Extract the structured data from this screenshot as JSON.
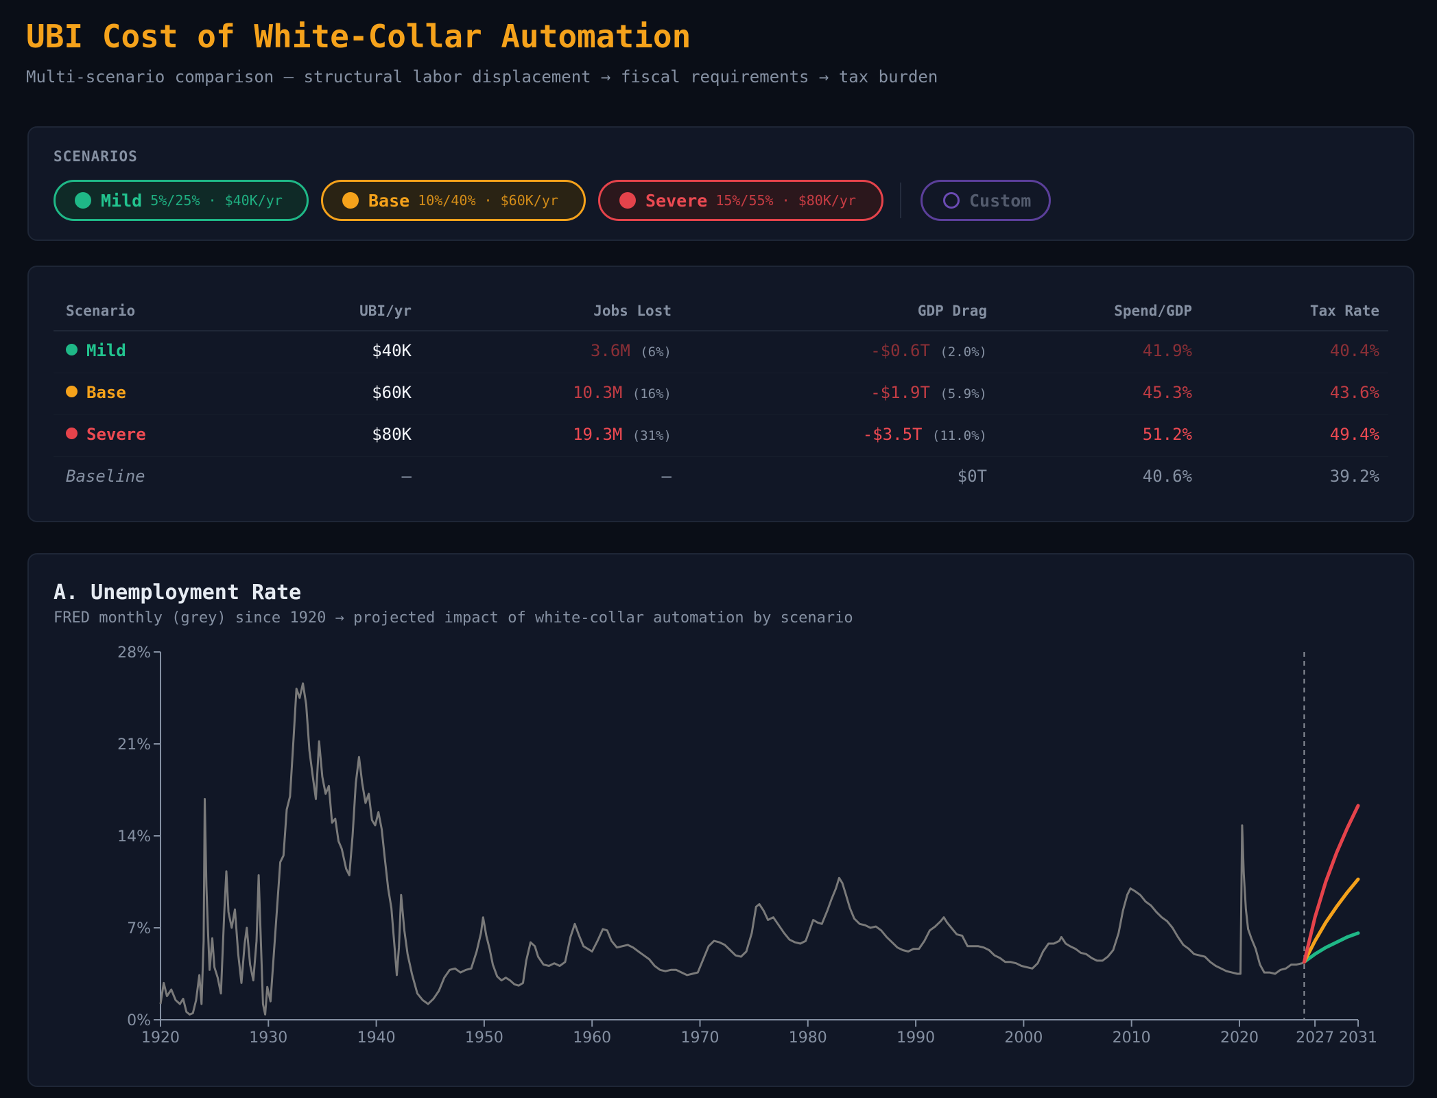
{
  "header": {
    "title": "UBI Cost of White-Collar Automation",
    "subtitle": "Multi-scenario comparison — structural labor displacement → fiscal requirements → tax burden"
  },
  "scenarios": {
    "label": "SCENARIOS",
    "pills": [
      {
        "name": "Mild",
        "desc": "5%/25% · $40K/yr",
        "color": "#1fb887"
      },
      {
        "name": "Base",
        "desc": "10%/40% · $60K/yr",
        "color": "#f5a21b"
      },
      {
        "name": "Severe",
        "desc": "15%/55% · $80K/yr",
        "color": "#e5434b"
      }
    ],
    "custom_label": "Custom"
  },
  "table": {
    "headers": [
      "Scenario",
      "UBI/yr",
      "Jobs Lost",
      "GDP Drag",
      "Spend/GDP",
      "Tax Rate"
    ],
    "rows": [
      {
        "name": "Mild",
        "ubi": "$40K",
        "jobs": "3.6M",
        "jobs_pct": "(6%)",
        "gdp": "-$0.6T",
        "gdp_pct": "(2.0%)",
        "spend": "41.9%",
        "tax": "40.4%",
        "color": "#1fb887",
        "val_color": "#8a2f36"
      },
      {
        "name": "Base",
        "ubi": "$60K",
        "jobs": "10.3M",
        "jobs_pct": "(16%)",
        "gdp": "-$1.9T",
        "gdp_pct": "(5.9%)",
        "spend": "45.3%",
        "tax": "43.6%",
        "color": "#f5a21b",
        "val_color": "#c23c44"
      },
      {
        "name": "Severe",
        "ubi": "$80K",
        "jobs": "19.3M",
        "jobs_pct": "(31%)",
        "gdp": "-$3.5T",
        "gdp_pct": "(11.0%)",
        "spend": "51.2%",
        "tax": "49.4%",
        "color": "#e5434b",
        "val_color": "#ef4a52"
      }
    ],
    "baseline": {
      "name": "Baseline",
      "ubi": "—",
      "jobs": "—",
      "gdp": "$0T",
      "spend": "40.6%",
      "tax": "39.2%"
    }
  },
  "chart_heading": {
    "title": "A. Unemployment Rate",
    "subtitle": "FRED monthly (grey) since 1920 → projected impact of white-collar automation by scenario"
  },
  "chart_data": {
    "type": "line",
    "xlim": [
      1920,
      2031
    ],
    "ylim": [
      0,
      28
    ],
    "yticks": [
      0,
      7,
      14,
      21,
      28
    ],
    "ytick_labels": [
      "0%",
      "7%",
      "14%",
      "21%",
      "28%"
    ],
    "xticks": [
      1920,
      1930,
      1940,
      1950,
      1960,
      1970,
      1980,
      1990,
      2000,
      2010,
      2020,
      2027,
      2031
    ],
    "projection_start": 2026,
    "history_color": "#7a7a7a",
    "history": [
      [
        1920,
        1.2
      ],
      [
        1920.3,
        2.8
      ],
      [
        1920.6,
        1.8
      ],
      [
        1921,
        2.3
      ],
      [
        1921.4,
        1.5
      ],
      [
        1921.8,
        1.2
      ],
      [
        1922.1,
        1.6
      ],
      [
        1922.4,
        0.6
      ],
      [
        1922.7,
        0.4
      ],
      [
        1923,
        0.5
      ],
      [
        1923.3,
        1.5
      ],
      [
        1923.6,
        3.4
      ],
      [
        1923.8,
        1.2
      ],
      [
        1924,
        6.0
      ],
      [
        1924.1,
        16.8
      ],
      [
        1924.25,
        10.2
      ],
      [
        1924.4,
        6.8
      ],
      [
        1924.55,
        3.8
      ],
      [
        1924.8,
        6.2
      ],
      [
        1925,
        4.0
      ],
      [
        1925.3,
        3.2
      ],
      [
        1925.6,
        2.0
      ],
      [
        1925.9,
        8.0
      ],
      [
        1926.1,
        11.3
      ],
      [
        1926.3,
        8.2
      ],
      [
        1926.6,
        7.0
      ],
      [
        1926.9,
        8.4
      ],
      [
        1927.2,
        5.0
      ],
      [
        1927.5,
        2.8
      ],
      [
        1927.8,
        5.8
      ],
      [
        1928,
        7.0
      ],
      [
        1928.3,
        4.2
      ],
      [
        1928.6,
        3.0
      ],
      [
        1928.9,
        6.0
      ],
      [
        1929.1,
        11.0
      ],
      [
        1929.3,
        6.0
      ],
      [
        1929.5,
        1.2
      ],
      [
        1929.7,
        0.4
      ],
      [
        1929.9,
        2.5
      ],
      [
        1930.2,
        1.4
      ],
      [
        1930.5,
        5.0
      ],
      [
        1930.8,
        8.5
      ],
      [
        1931.1,
        12.0
      ],
      [
        1931.4,
        12.5
      ],
      [
        1931.7,
        16.0
      ],
      [
        1932,
        17.0
      ],
      [
        1932.3,
        21.0
      ],
      [
        1932.6,
        25.2
      ],
      [
        1932.9,
        24.5
      ],
      [
        1933.2,
        25.6
      ],
      [
        1933.5,
        24.0
      ],
      [
        1933.8,
        20.5
      ],
      [
        1934.1,
        18.6
      ],
      [
        1934.4,
        16.8
      ],
      [
        1934.7,
        21.2
      ],
      [
        1935,
        18.5
      ],
      [
        1935.3,
        17.2
      ],
      [
        1935.6,
        17.8
      ],
      [
        1935.9,
        15.0
      ],
      [
        1936.2,
        15.3
      ],
      [
        1936.5,
        13.6
      ],
      [
        1936.8,
        13.0
      ],
      [
        1937.2,
        11.5
      ],
      [
        1937.5,
        11.0
      ],
      [
        1937.8,
        14.0
      ],
      [
        1938.1,
        18.0
      ],
      [
        1938.4,
        20.0
      ],
      [
        1938.7,
        18.0
      ],
      [
        1939,
        16.5
      ],
      [
        1939.3,
        17.2
      ],
      [
        1939.6,
        15.2
      ],
      [
        1939.9,
        14.8
      ],
      [
        1940.2,
        15.8
      ],
      [
        1940.5,
        14.5
      ],
      [
        1940.8,
        12.2
      ],
      [
        1941.1,
        10.0
      ],
      [
        1941.4,
        8.5
      ],
      [
        1941.7,
        5.5
      ],
      [
        1941.9,
        3.4
      ],
      [
        1942.1,
        5.5
      ],
      [
        1942.3,
        9.5
      ],
      [
        1942.6,
        6.8
      ],
      [
        1942.9,
        5.0
      ],
      [
        1943.3,
        3.5
      ],
      [
        1943.8,
        2.0
      ],
      [
        1944.3,
        1.5
      ],
      [
        1944.8,
        1.2
      ],
      [
        1945.3,
        1.6
      ],
      [
        1945.8,
        2.2
      ],
      [
        1946.3,
        3.2
      ],
      [
        1946.8,
        3.8
      ],
      [
        1947.3,
        3.9
      ],
      [
        1947.8,
        3.6
      ],
      [
        1948.3,
        3.8
      ],
      [
        1948.8,
        3.9
      ],
      [
        1949.3,
        5.2
      ],
      [
        1949.7,
        6.6
      ],
      [
        1949.9,
        7.8
      ],
      [
        1950.2,
        6.4
      ],
      [
        1950.5,
        5.4
      ],
      [
        1950.8,
        4.2
      ],
      [
        1951.2,
        3.3
      ],
      [
        1951.6,
        3.0
      ],
      [
        1952,
        3.2
      ],
      [
        1952.4,
        3.0
      ],
      [
        1952.8,
        2.7
      ],
      [
        1953.2,
        2.6
      ],
      [
        1953.6,
        2.8
      ],
      [
        1953.9,
        4.5
      ],
      [
        1954.3,
        5.9
      ],
      [
        1954.7,
        5.6
      ],
      [
        1955,
        4.8
      ],
      [
        1955.5,
        4.2
      ],
      [
        1956,
        4.1
      ],
      [
        1956.5,
        4.3
      ],
      [
        1957,
        4.1
      ],
      [
        1957.5,
        4.4
      ],
      [
        1958,
        6.3
      ],
      [
        1958.4,
        7.3
      ],
      [
        1958.8,
        6.4
      ],
      [
        1959.2,
        5.6
      ],
      [
        1959.6,
        5.4
      ],
      [
        1960,
        5.2
      ],
      [
        1960.5,
        6.0
      ],
      [
        1961,
        6.9
      ],
      [
        1961.4,
        6.8
      ],
      [
        1961.8,
        6.0
      ],
      [
        1962.3,
        5.5
      ],
      [
        1962.8,
        5.6
      ],
      [
        1963.3,
        5.7
      ],
      [
        1963.8,
        5.5
      ],
      [
        1964.3,
        5.2
      ],
      [
        1964.8,
        4.9
      ],
      [
        1965.3,
        4.6
      ],
      [
        1965.8,
        4.1
      ],
      [
        1966.3,
        3.8
      ],
      [
        1966.8,
        3.7
      ],
      [
        1967.3,
        3.8
      ],
      [
        1967.8,
        3.8
      ],
      [
        1968.3,
        3.6
      ],
      [
        1968.8,
        3.4
      ],
      [
        1969.3,
        3.5
      ],
      [
        1969.8,
        3.6
      ],
      [
        1970.3,
        4.6
      ],
      [
        1970.8,
        5.6
      ],
      [
        1971.3,
        6.0
      ],
      [
        1971.8,
        5.9
      ],
      [
        1972.3,
        5.7
      ],
      [
        1972.8,
        5.3
      ],
      [
        1973.3,
        4.9
      ],
      [
        1973.8,
        4.8
      ],
      [
        1974.3,
        5.2
      ],
      [
        1974.8,
        6.6
      ],
      [
        1975.2,
        8.6
      ],
      [
        1975.5,
        8.8
      ],
      [
        1975.9,
        8.3
      ],
      [
        1976.3,
        7.6
      ],
      [
        1976.8,
        7.8
      ],
      [
        1977.3,
        7.2
      ],
      [
        1977.8,
        6.6
      ],
      [
        1978.3,
        6.1
      ],
      [
        1978.8,
        5.9
      ],
      [
        1979.3,
        5.8
      ],
      [
        1979.8,
        6.0
      ],
      [
        1980.2,
        6.9
      ],
      [
        1980.5,
        7.6
      ],
      [
        1980.9,
        7.4
      ],
      [
        1981.3,
        7.3
      ],
      [
        1981.8,
        8.3
      ],
      [
        1982.2,
        9.2
      ],
      [
        1982.6,
        10.0
      ],
      [
        1982.9,
        10.8
      ],
      [
        1983.2,
        10.4
      ],
      [
        1983.5,
        9.6
      ],
      [
        1983.9,
        8.5
      ],
      [
        1984.3,
        7.7
      ],
      [
        1984.8,
        7.3
      ],
      [
        1985.3,
        7.2
      ],
      [
        1985.8,
        7.0
      ],
      [
        1986.3,
        7.1
      ],
      [
        1986.8,
        6.8
      ],
      [
        1987.3,
        6.3
      ],
      [
        1987.8,
        5.9
      ],
      [
        1988.3,
        5.5
      ],
      [
        1988.8,
        5.3
      ],
      [
        1989.3,
        5.2
      ],
      [
        1989.8,
        5.4
      ],
      [
        1990.3,
        5.4
      ],
      [
        1990.8,
        6.0
      ],
      [
        1991.3,
        6.8
      ],
      [
        1991.8,
        7.1
      ],
      [
        1992.3,
        7.5
      ],
      [
        1992.6,
        7.8
      ],
      [
        1992.9,
        7.4
      ],
      [
        1993.3,
        7.0
      ],
      [
        1993.8,
        6.5
      ],
      [
        1994.3,
        6.4
      ],
      [
        1994.8,
        5.6
      ],
      [
        1995.3,
        5.6
      ],
      [
        1995.8,
        5.6
      ],
      [
        1996.3,
        5.5
      ],
      [
        1996.8,
        5.3
      ],
      [
        1997.3,
        4.9
      ],
      [
        1997.8,
        4.7
      ],
      [
        1998.3,
        4.4
      ],
      [
        1998.8,
        4.4
      ],
      [
        1999.3,
        4.3
      ],
      [
        1999.8,
        4.1
      ],
      [
        2000.3,
        4.0
      ],
      [
        2000.8,
        3.9
      ],
      [
        2001.3,
        4.3
      ],
      [
        2001.8,
        5.2
      ],
      [
        2002.3,
        5.8
      ],
      [
        2002.8,
        5.8
      ],
      [
        2003.3,
        6.0
      ],
      [
        2003.5,
        6.3
      ],
      [
        2003.9,
        5.8
      ],
      [
        2004.3,
        5.6
      ],
      [
        2004.8,
        5.4
      ],
      [
        2005.3,
        5.1
      ],
      [
        2005.8,
        5.0
      ],
      [
        2006.3,
        4.7
      ],
      [
        2006.8,
        4.5
      ],
      [
        2007.3,
        4.5
      ],
      [
        2007.8,
        4.8
      ],
      [
        2008.3,
        5.3
      ],
      [
        2008.8,
        6.6
      ],
      [
        2009.2,
        8.3
      ],
      [
        2009.6,
        9.5
      ],
      [
        2009.9,
        10.0
      ],
      [
        2010.3,
        9.8
      ],
      [
        2010.8,
        9.5
      ],
      [
        2011.3,
        9.0
      ],
      [
        2011.8,
        8.7
      ],
      [
        2012.3,
        8.2
      ],
      [
        2012.8,
        7.8
      ],
      [
        2013.3,
        7.5
      ],
      [
        2013.8,
        7.0
      ],
      [
        2014.3,
        6.3
      ],
      [
        2014.8,
        5.7
      ],
      [
        2015.3,
        5.4
      ],
      [
        2015.8,
        5.0
      ],
      [
        2016.3,
        4.9
      ],
      [
        2016.8,
        4.8
      ],
      [
        2017.3,
        4.4
      ],
      [
        2017.8,
        4.1
      ],
      [
        2018.3,
        3.9
      ],
      [
        2018.8,
        3.7
      ],
      [
        2019.3,
        3.6
      ],
      [
        2019.8,
        3.5
      ],
      [
        2020.1,
        3.5
      ],
      [
        2020.25,
        14.8
      ],
      [
        2020.4,
        11.1
      ],
      [
        2020.6,
        8.4
      ],
      [
        2020.8,
        6.9
      ],
      [
        2021.1,
        6.2
      ],
      [
        2021.5,
        5.4
      ],
      [
        2021.9,
        4.2
      ],
      [
        2022.3,
        3.6
      ],
      [
        2022.8,
        3.6
      ],
      [
        2023.3,
        3.5
      ],
      [
        2023.8,
        3.8
      ],
      [
        2024.3,
        3.9
      ],
      [
        2024.8,
        4.2
      ],
      [
        2025.3,
        4.2
      ],
      [
        2025.8,
        4.3
      ],
      [
        2026,
        4.4
      ]
    ],
    "series": [
      {
        "color": "#1fb887",
        "x": [
          2026,
          2027,
          2028,
          2029,
          2030,
          2031
        ],
        "values": [
          4.4,
          5.0,
          5.5,
          5.9,
          6.3,
          6.6
        ]
      },
      {
        "color": "#f5a21b",
        "x": [
          2026,
          2027,
          2028,
          2029,
          2030,
          2031
        ],
        "values": [
          4.4,
          6.0,
          7.4,
          8.6,
          9.7,
          10.7
        ]
      },
      {
        "color": "#e5434b",
        "x": [
          2026,
          2027,
          2028,
          2029,
          2030,
          2031
        ],
        "values": [
          4.4,
          7.8,
          10.5,
          12.7,
          14.6,
          16.3
        ]
      }
    ]
  }
}
